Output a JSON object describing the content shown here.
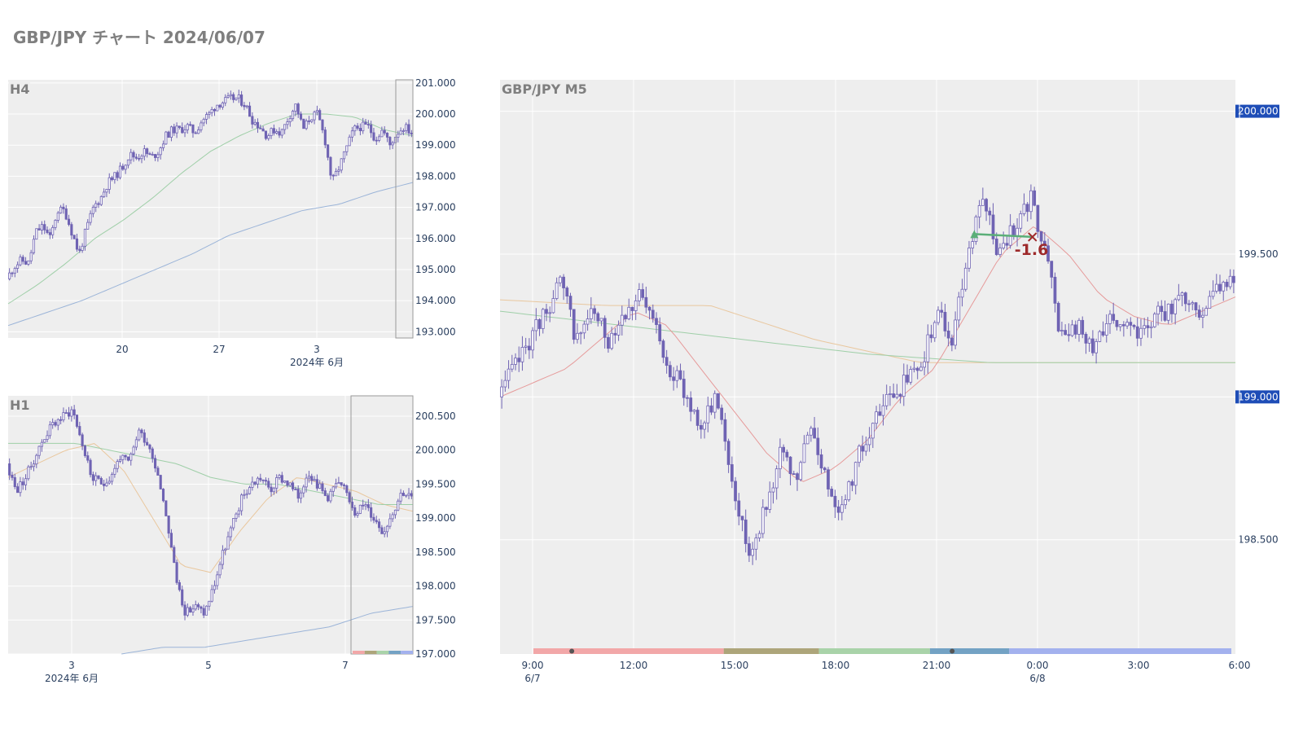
{
  "page": {
    "title": "GBP/JPY チャート 2024/06/07"
  },
  "colors": {
    "plot_bg": "#EEEEEE",
    "grid": "#FFFFFF",
    "candle": "#6F63B3",
    "ma_short": "#E69A9A",
    "ma_mid": "#9FCFA8",
    "ma_long": "#9BB4D8",
    "ma_orange": "#E9C79E",
    "badge": "#1E4DB7",
    "trade_entry": "#5BAF78",
    "trade_exit": "#9E2A2B"
  },
  "chart_data": [
    {
      "id": "h4",
      "type": "candlestick",
      "title": "H4",
      "y_ticks": [
        "193.000",
        "194.000",
        "195.000",
        "196.000",
        "197.000",
        "198.000",
        "199.000",
        "200.000",
        "201.000"
      ],
      "ylim": [
        192.8,
        201.1
      ],
      "x_ticks": [
        {
          "label": "20",
          "sub": ""
        },
        {
          "label": "27",
          "sub": ""
        },
        {
          "label": "3",
          "sub": "2024年 6月"
        }
      ],
      "close_path": [
        194.7,
        195.1,
        195.3,
        195.2,
        196.2,
        196.4,
        196.0,
        196.9,
        196.9,
        196.2,
        195.5,
        196.3,
        197.0,
        197.3,
        197.8,
        198.0,
        198.3,
        198.7,
        198.6,
        198.8,
        198.6,
        198.8,
        199.3,
        199.5,
        199.5,
        199.6,
        199.4,
        199.8,
        200.0,
        200.3,
        200.4,
        200.5,
        200.5,
        200.3,
        199.8,
        199.6,
        199.3,
        199.5,
        199.4,
        199.9,
        200.3,
        199.5,
        199.9,
        200.0,
        199.2,
        197.8,
        198.3,
        198.9,
        199.5,
        199.6,
        199.6,
        199.2,
        199.5,
        199.0,
        199.4,
        199.6,
        199.4
      ],
      "ma_mid_path": [
        193.9,
        194.5,
        195.2,
        196.0,
        196.6,
        197.3,
        198.1,
        198.8,
        199.3,
        199.7,
        200.0,
        200.0,
        199.9,
        199.5,
        199.3
      ],
      "ma_long_path": [
        193.2,
        193.6,
        194.0,
        194.5,
        195.0,
        195.5,
        196.1,
        196.5,
        196.9,
        197.1,
        197.5,
        197.8
      ]
    },
    {
      "id": "h1",
      "type": "candlestick",
      "title": "H1",
      "y_ticks": [
        "197.000",
        "197.500",
        "198.000",
        "198.500",
        "199.000",
        "199.500",
        "200.000",
        "200.500"
      ],
      "ylim": [
        197.0,
        200.8
      ],
      "x_ticks": [
        {
          "label": "3",
          "sub": "2024年 6月"
        },
        {
          "label": "5",
          "sub": ""
        },
        {
          "label": "7",
          "sub": ""
        }
      ],
      "close_path": [
        199.8,
        199.4,
        199.6,
        199.9,
        200.2,
        200.4,
        200.5,
        200.6,
        200.1,
        199.6,
        199.5,
        199.6,
        199.9,
        199.8,
        200.3,
        200.1,
        199.7,
        199.0,
        198.1,
        197.6,
        197.7,
        197.6,
        198.0,
        198.5,
        198.9,
        199.3,
        199.5,
        199.6,
        199.4,
        199.6,
        199.5,
        199.3,
        199.7,
        199.5,
        199.3,
        199.5,
        199.4,
        199.1,
        199.2,
        199.0,
        198.8,
        199.1,
        199.4,
        199.3
      ],
      "ma_mid_path": [
        200.1,
        200.1,
        200.1,
        200.0,
        199.9,
        199.8,
        199.6,
        199.5,
        199.5,
        199.4,
        199.3,
        199.2,
        199.2
      ],
      "ma_orange_path": [
        199.6,
        199.8,
        200.0,
        200.1,
        199.7,
        199.0,
        198.3,
        198.2,
        198.8,
        199.3,
        199.6,
        199.5,
        199.4,
        199.2,
        199.1
      ],
      "ma_long_path": [
        197.0,
        197.1,
        197.1,
        197.2,
        197.3,
        197.4,
        197.6,
        197.7
      ]
    },
    {
      "id": "m5",
      "type": "candlestick",
      "title": "GBP/JPY M5",
      "y_ticks": [
        "198.500",
        "199.000",
        "199.500",
        "200.000"
      ],
      "badges": [
        "199.000",
        "200.000"
      ],
      "ylim": [
        198.1,
        200.11
      ],
      "x_ticks": [
        {
          "label": "9:00",
          "sub": "6/7"
        },
        {
          "label": "12:00",
          "sub": ""
        },
        {
          "label": "15:00",
          "sub": ""
        },
        {
          "label": "18:00",
          "sub": ""
        },
        {
          "label": "21:00",
          "sub": ""
        },
        {
          "label": "0:00",
          "sub": "6/8"
        },
        {
          "label": "3:00",
          "sub": ""
        },
        {
          "label": "6:00",
          "sub": ""
        }
      ],
      "close_path": [
        199.0,
        199.1,
        199.2,
        199.3,
        199.4,
        199.2,
        199.3,
        199.2,
        199.3,
        199.35,
        199.25,
        199.1,
        199.0,
        198.9,
        199.0,
        198.7,
        198.45,
        198.6,
        198.8,
        198.7,
        198.9,
        198.7,
        198.6,
        198.8,
        198.9,
        199.0,
        199.05,
        199.1,
        199.3,
        199.2,
        199.5,
        199.7,
        199.5,
        199.6,
        199.7,
        199.5,
        199.2,
        199.25,
        199.15,
        199.3,
        199.25,
        199.2,
        199.3,
        199.3,
        199.35,
        199.3,
        199.4,
        199.4
      ],
      "ma_short_path": [
        199.0,
        199.05,
        199.1,
        199.2,
        199.3,
        199.25,
        199.1,
        198.95,
        198.8,
        198.7,
        198.75,
        198.85,
        199.0,
        199.1,
        199.3,
        199.5,
        199.6,
        199.5,
        199.35,
        199.28,
        199.25,
        199.3,
        199.35
      ],
      "ma_mid_path": [
        199.3,
        199.25,
        199.2,
        199.15,
        199.12,
        199.12,
        199.12
      ],
      "ma_orange_path": [
        199.34,
        199.32,
        199.32,
        199.2,
        199.12,
        199.12,
        199.12,
        199.12
      ],
      "trade": {
        "entry_price": 199.57,
        "exit_price": 199.56,
        "label": "-1.6"
      },
      "sessions": [
        {
          "from": 0.0,
          "to": 0.2727,
          "color": "#F2A7A8"
        },
        {
          "from": 0.2727,
          "to": 0.4091,
          "color": "#ADA57A"
        },
        {
          "from": 0.4091,
          "to": 0.5682,
          "color": "#A9D3A9"
        },
        {
          "from": 0.5682,
          "to": 0.6818,
          "color": "#73A2C4"
        },
        {
          "from": 0.6818,
          "to": 1.0,
          "color": "#A3B1EE"
        }
      ]
    }
  ]
}
